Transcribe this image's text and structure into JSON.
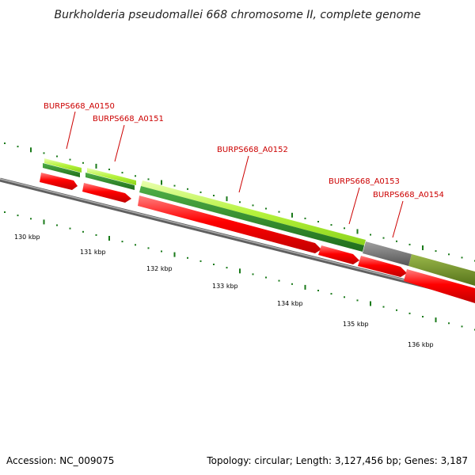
{
  "title": "Burkholderia pseudomallei 668 chromosome II, complete genome",
  "footer": {
    "accession": "Accession: NC_009075",
    "summary": "Topology: circular; Length: 3,127,456 bp; Genes: 3,187"
  },
  "scale_labels": [
    "130 kbp",
    "131 kbp",
    "132 kbp",
    "133 kbp",
    "134 kbp",
    "135 kbp",
    "136 kbp"
  ],
  "genes": [
    {
      "name": "BURPS668_A0150"
    },
    {
      "name": "BURPS668_A0151"
    },
    {
      "name": "BURPS668_A0152"
    },
    {
      "name": "BURPS668_A0153"
    },
    {
      "name": "BURPS668_A0154"
    }
  ],
  "colors": {
    "cds": "#ff0000",
    "feature_light": "#b5f23c",
    "feature_dark": "#2f8a2a",
    "feature_grey": "#707070",
    "feature_olive": "#6b8e23",
    "backbone": "#808080",
    "tick": "#1a7a1a",
    "label": "#cc0000"
  }
}
